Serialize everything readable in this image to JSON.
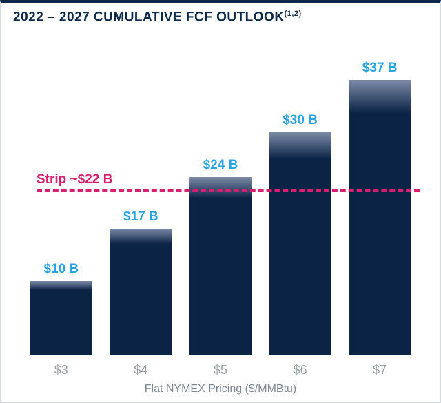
{
  "title_main": "2022 – 2027 CUMULATIVE FCF OUTLOOK",
  "title_sup": "(1,2)",
  "chart": {
    "type": "bar",
    "categories": [
      "$3",
      "$4",
      "$5",
      "$6",
      "$7"
    ],
    "values": [
      10,
      17,
      24,
      30,
      37
    ],
    "value_labels": [
      "$10 B",
      "$17 B",
      "$24 B",
      "$30 B",
      "$37 B"
    ],
    "ylim_max": 42,
    "bar_fill_top": "#7d8aa8",
    "bar_fill_main": "#0b2446",
    "value_label_color": "#2aa4e0",
    "value_label_fontsize": 19,
    "xtick_color": "#97a0ab",
    "xtick_fontsize": 18,
    "xlabel": "Flat NYMEX Pricing ($/MMBtu)",
    "xlabel_color": "#7c8793",
    "xlabel_fontsize": 16,
    "title_color": "#0b2a4a",
    "title_fontsize": 19,
    "background_color": "#ffffff",
    "border_color": "#d4dae2",
    "top_rule_color": "#0b2a4a",
    "bar_width_pct": 78
  },
  "reference_line": {
    "label": "Strip ~$22 B",
    "value": 22,
    "color": "#d81e6e",
    "dash": "dashed",
    "line_width": 4,
    "label_fontsize": 19,
    "label_color": "#d81e6e"
  }
}
